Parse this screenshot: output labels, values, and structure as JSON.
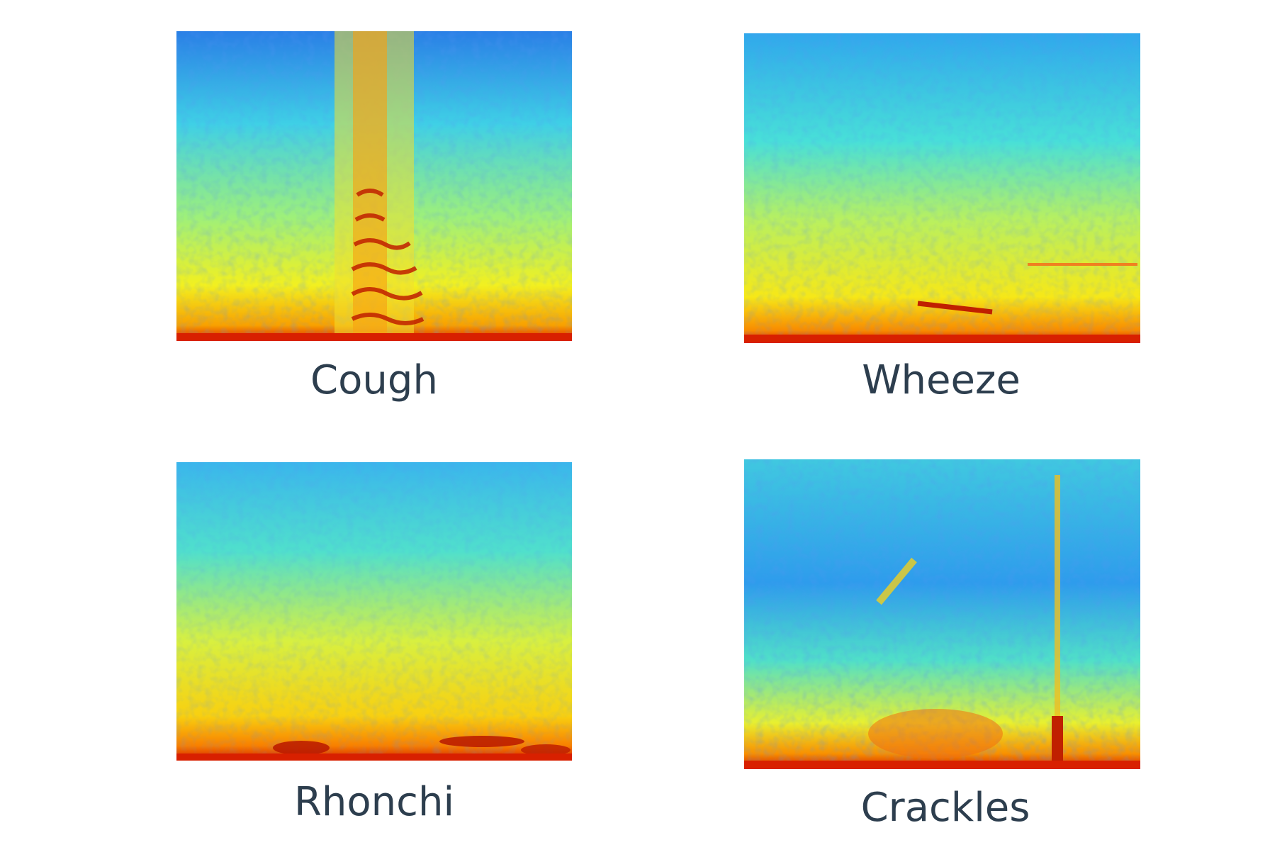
{
  "panels": [
    {
      "label": "Cough"
    },
    {
      "label": "Wheeze"
    },
    {
      "label": "Rhonchi"
    },
    {
      "label": "Crackles"
    }
  ]
}
